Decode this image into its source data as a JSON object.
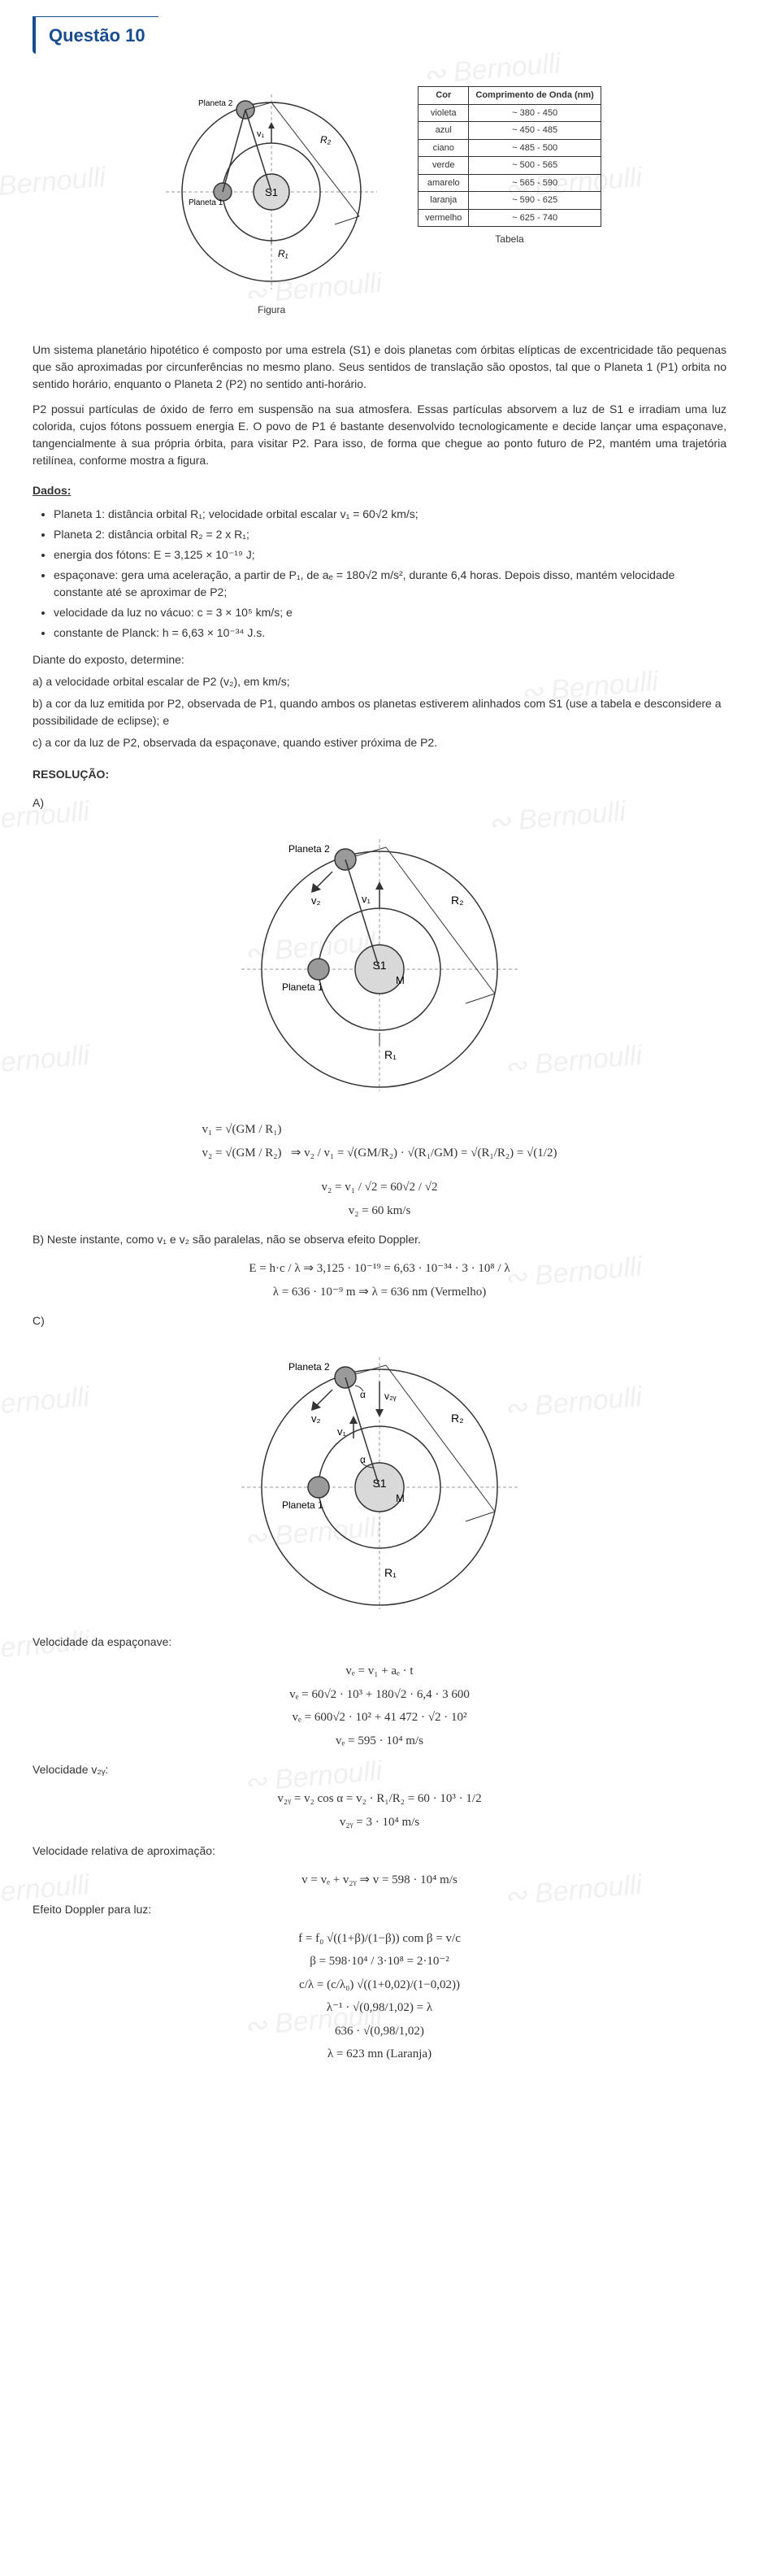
{
  "header": {
    "title": "Questão 10"
  },
  "figure": {
    "planet1": "Planeta 1",
    "planet2": "Planeta 2",
    "star": "S1",
    "v1": "v₁",
    "r1": "R₁",
    "r2": "R₂",
    "caption": "Figura"
  },
  "table": {
    "caption": "Tabela",
    "headers": [
      "Cor",
      "Comprimento de Onda (nm)"
    ],
    "rows": [
      [
        "violeta",
        "~ 380 - 450"
      ],
      [
        "azul",
        "~ 450 - 485"
      ],
      [
        "ciano",
        "~ 485 - 500"
      ],
      [
        "verde",
        "~ 500 - 565"
      ],
      [
        "amarelo",
        "~ 565 - 590"
      ],
      [
        "laranja",
        "~ 590 - 625"
      ],
      [
        "vermelho",
        "~ 625 - 740"
      ]
    ]
  },
  "body": {
    "p1": "Um sistema planetário hipotético é composto por uma estrela (S1) e dois planetas com órbitas elípticas de excentricidade tão pequenas que são aproximadas por circunferências no mesmo plano. Seus sentidos de translação são opostos, tal que o Planeta 1 (P1) orbita no sentido horário, enquanto o Planeta 2 (P2) no sentido anti-horário.",
    "p2": "P2 possui partículas de óxido de ferro em suspensão na sua atmosfera.  Essas partículas absorvem a luz de S1 e irradiam uma luz colorida, cujos fótons possuem energia E.  O povo de P1 é bastante desenvolvido tecnologicamente e decide lançar uma espaçonave, tangencialmente à sua própria órbita, para visitar P2. Para isso, de forma que chegue ao ponto futuro de P2, mantém uma trajetória retilínea, conforme mostra a figura.",
    "dados_h": "Dados:",
    "d1": "Planeta 1: distância orbital R₁; velocidade orbital escalar v₁ = 60√2 km/s;",
    "d2": "Planeta 2: distância orbital R₂ = 2 x R₁;",
    "d3": "energia dos fótons: E = 3,125 × 10⁻¹⁹ J;",
    "d4": "espaçonave: gera uma aceleração, a partir de P₁, de aₑ = 180√2 m/s², durante 6,4 horas. Depois disso, mantém velocidade constante até se aproximar de P2;",
    "d5": "velocidade da luz no vácuo: c = 3 × 10⁵ km/s; e",
    "d6": "constante de Planck: h = 6,63 × 10⁻³⁴ J.s.",
    "ask": "Diante do exposto, determine:",
    "qa": "a)  a velocidade orbital escalar de P2 (v₂), em km/s;",
    "qb": "b)  a cor da luz emitida por P2, observada de P1, quando ambos os planetas estiverem alinhados com S1 (use a tabela e desconsidere a possibilidade de eclipse); e",
    "qc": "c)  a cor da luz de P2, observada da espaçonave, quando estiver próxima de P2."
  },
  "resol": {
    "h": "RESOLUÇÃO:",
    "A": "A)",
    "figA": {
      "planet1": "Planeta 1",
      "planet2": "Planeta 2",
      "star": "S1",
      "M": "M",
      "v1": "v₁",
      "v2": "v₂",
      "r1": "R₁",
      "r2": "R₂"
    },
    "eqA1a": "v₁ = √(GM / R₁)",
    "eqA1b": "v₂ = √(GM / R₂)",
    "eqA1r": "⇒ v₂ / v₁ = √(GM/R₂) · √(R₁/GM) = √(R₁/R₂) = √(1/2)",
    "eqA2": "v₂ = v₁ / √2 = 60√2 / √2",
    "eqA3": "v₂ = 60 km/s",
    "B": "B)  Neste instante, como v₁ e v₂ são paralelas, não se observa efeito Doppler.",
    "eqB1": "E = h·c / λ ⇒ 3,125 · 10⁻¹⁹ = 6,63 · 10⁻³⁴ · 3 · 10⁸ / λ",
    "eqB2": "λ = 636 · 10⁻⁹ m ⇒ λ = 636 nm (Vermelho)",
    "C": "C)",
    "figC": {
      "planet1": "Planeta 1",
      "planet2": "Planeta 2",
      "star": "S1",
      "M": "M",
      "v1": "v₁",
      "v2": "v₂",
      "v2y": "v₂ᵧ",
      "alpha": "α",
      "r1": "R₁",
      "r2": "R₂"
    },
    "velE_h": "Velocidade da espaçonave:",
    "eqC1": "vₑ = v₁ + aₑ · t",
    "eqC2": "vₑ = 60√2 · 10³ + 180√2 · 6,4 · 3 600",
    "eqC3": "vₑ = 600√2 · 10² + 41 472 · √2 · 10²",
    "eqC4": "vₑ = 595 · 10⁴ m/s",
    "v2y_h": "Velocidade v₂ᵧ:",
    "eqC5": "v₂ᵧ = v₂ cos α = v₂ · R₁/R₂ = 60 · 10³ · 1/2",
    "eqC6": "v₂ᵧ = 3 · 10⁴ m/s",
    "vrel_h": "Velocidade relativa de aproximação:",
    "eqC7": "v = vₑ + v₂ᵧ ⇒ v = 598 · 10⁴ m/s",
    "dop_h": "Efeito Doppler para luz:",
    "eqC8": "f = f₀ √((1+β)/(1−β))  com  β = v/c",
    "eqC9": "β = 598·10⁴ / 3·10⁸ = 2·10⁻²",
    "eqC10": "c/λ = (c/λ₀) √((1+0,02)/(1−0,02))",
    "eqC11": "λ⁻¹ · √(0,98/1,02) = λ",
    "eqC12": "636 · √(0,98/1,02)",
    "eqC13": "λ = 623 mn (Laranja)"
  },
  "colors": {
    "accent": "#1a4d8f",
    "planet": "#9a9a9a",
    "star": "#d9d9d9",
    "line": "#333333",
    "wm": "#f0f0f0"
  }
}
